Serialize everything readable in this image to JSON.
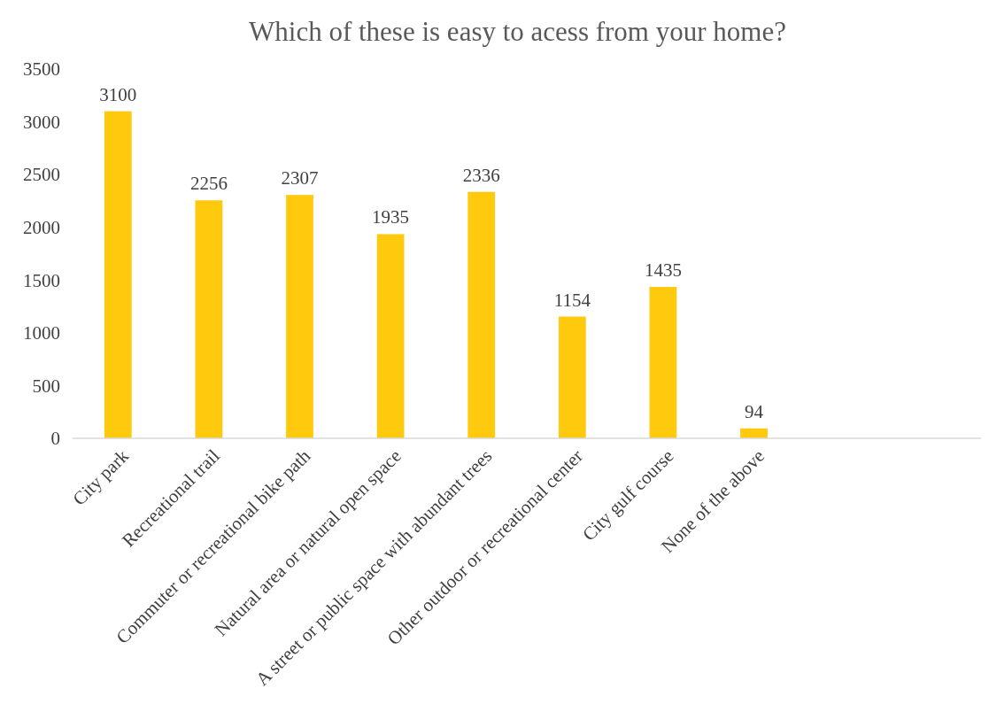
{
  "chart_data": {
    "type": "bar",
    "title": "Which of these is easy to acess from your home?",
    "categories": [
      "City park",
      "Recreational trail",
      "Commuter or recreational bike path",
      "Natural area or natural open space",
      "A street or public space with abundant trees",
      "Other outdoor or recreational center",
      "City gulf course",
      "None of the above",
      null,
      null
    ],
    "values": [
      3100,
      2256,
      2307,
      1935,
      2336,
      1154,
      1435,
      94,
      null,
      null
    ],
    "color": "#ffc90e",
    "ylim": [
      0,
      3500
    ],
    "yticks": [
      0,
      500,
      1000,
      1500,
      2000,
      2500,
      3000,
      3500
    ],
    "data_labels": true,
    "grid": false
  }
}
